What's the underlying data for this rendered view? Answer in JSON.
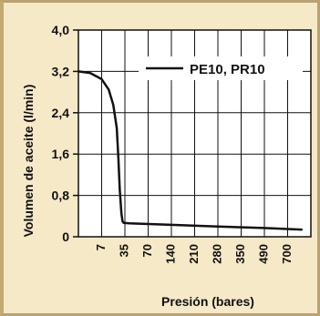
{
  "chart_data": {
    "type": "line",
    "title": "",
    "xlabel": "Presión (bares)",
    "ylabel": "Volumen de aceite (l/min)",
    "x_tick_labels": [
      "7",
      "35",
      "70",
      "140",
      "210",
      "280",
      "350",
      "490",
      "700"
    ],
    "y_tick_labels": [
      "0",
      "0,8",
      "1,6",
      "2,4",
      "3,2",
      "4,0"
    ],
    "ylim": [
      0,
      4.0
    ],
    "x_scale": "categorical ticks (non-linear pressure axis)",
    "grid": true,
    "legend_position": "top-right",
    "series": [
      {
        "name": "PE10, PR10",
        "color": "#111111",
        "x_position": [
          0,
          0.5,
          1.0,
          1.3,
          1.5,
          1.65,
          1.72,
          1.78,
          1.85,
          1.9,
          1.95,
          2.2,
          4,
          6,
          8,
          9.6
        ],
        "values": [
          3.2,
          3.17,
          3.05,
          2.85,
          2.55,
          2.1,
          1.5,
          0.9,
          0.45,
          0.3,
          0.27,
          0.26,
          0.23,
          0.2,
          0.17,
          0.14
        ]
      }
    ],
    "colors": {
      "background": "#f6e9c8",
      "plot_area": "#ffffff",
      "line": "#111111"
    }
  }
}
